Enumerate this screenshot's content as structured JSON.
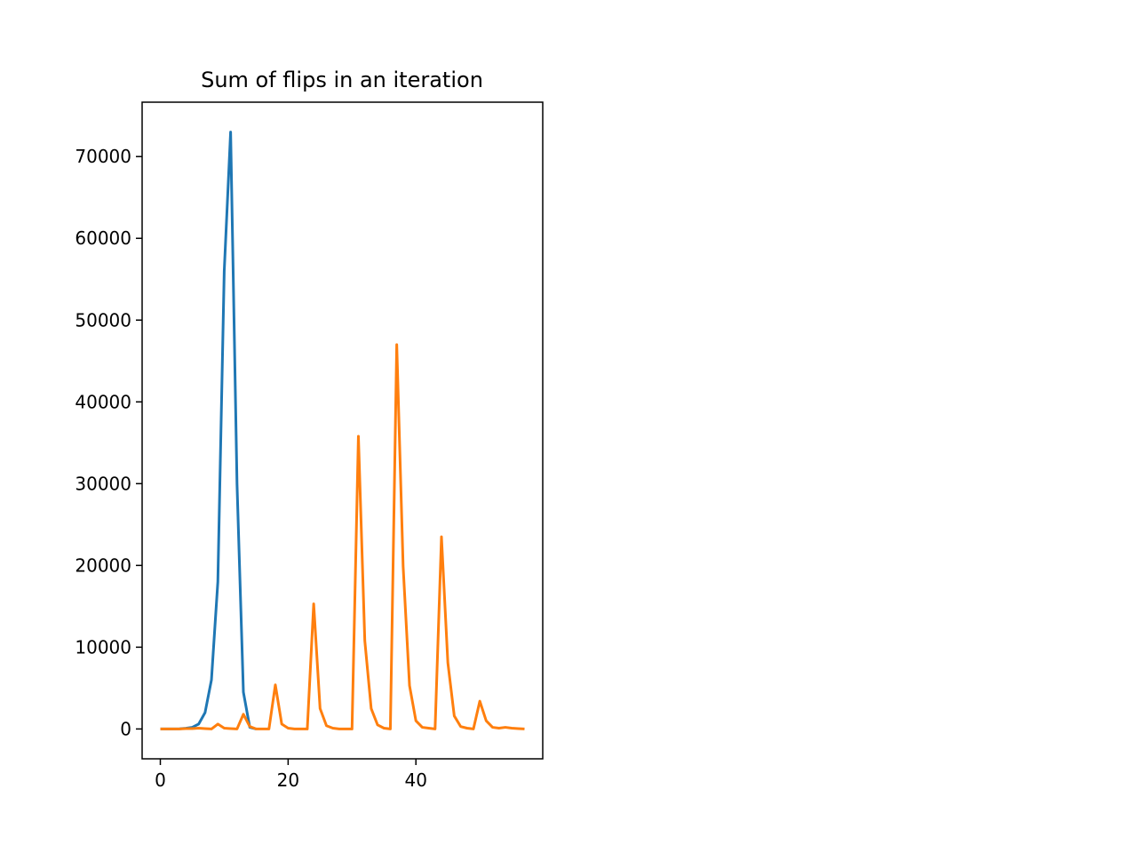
{
  "chart_data": {
    "type": "line",
    "title": "Sum of flips in an iteration",
    "xlabel": "",
    "ylabel": "",
    "xlim": [
      -2.85,
      59.85
    ],
    "ylim": [
      -3650,
      76650
    ],
    "x_ticks": [
      0,
      20,
      40
    ],
    "y_ticks": [
      0,
      10000,
      20000,
      30000,
      40000,
      50000,
      60000,
      70000
    ],
    "grid": false,
    "legend": "none",
    "series": [
      {
        "color": "#1f77b4",
        "x": [
          0,
          1,
          2,
          3,
          4,
          5,
          6,
          7,
          8,
          9,
          10,
          11,
          12,
          13,
          14,
          15
        ],
        "values": [
          0,
          0,
          0,
          20,
          80,
          200,
          600,
          2000,
          6000,
          18000,
          56000,
          73000,
          30000,
          4500,
          200,
          0
        ]
      },
      {
        "color": "#ff7f0e",
        "x": [
          0,
          1,
          2,
          3,
          4,
          5,
          6,
          7,
          8,
          9,
          10,
          11,
          12,
          13,
          14,
          15,
          16,
          17,
          18,
          19,
          20,
          21,
          22,
          23,
          24,
          25,
          26,
          27,
          28,
          29,
          30,
          31,
          32,
          33,
          34,
          35,
          36,
          37,
          38,
          39,
          40,
          41,
          42,
          43,
          44,
          45,
          46,
          47,
          48,
          49,
          50,
          51,
          52,
          53,
          54,
          55,
          56,
          57
        ],
        "values": [
          0,
          0,
          0,
          0,
          50,
          50,
          100,
          50,
          0,
          600,
          100,
          50,
          0,
          1800,
          300,
          0,
          0,
          0,
          5400,
          600,
          100,
          0,
          0,
          0,
          15300,
          2500,
          400,
          100,
          0,
          0,
          0,
          35800,
          10800,
          2500,
          500,
          100,
          0,
          47000,
          19900,
          5300,
          1000,
          200,
          100,
          0,
          23500,
          8100,
          1600,
          300,
          100,
          0,
          3400,
          1000,
          200,
          100,
          200,
          100,
          50,
          0
        ]
      }
    ]
  }
}
